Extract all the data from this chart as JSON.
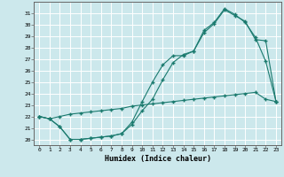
{
  "xlabel": "Humidex (Indice chaleur)",
  "bg_color": "#cce8ec",
  "grid_color": "#ffffff",
  "line_color": "#1a7a6e",
  "xlim": [
    -0.5,
    23.5
  ],
  "ylim": [
    19.5,
    32.0
  ],
  "yticks": [
    20,
    21,
    22,
    23,
    24,
    25,
    26,
    27,
    28,
    29,
    30,
    31
  ],
  "xticks": [
    0,
    1,
    2,
    3,
    4,
    5,
    6,
    7,
    8,
    9,
    10,
    11,
    12,
    13,
    14,
    15,
    16,
    17,
    18,
    19,
    20,
    21,
    22,
    23
  ],
  "line1_x": [
    0,
    1,
    2,
    3,
    4,
    5,
    6,
    7,
    8,
    9,
    10,
    11,
    12,
    13,
    14,
    15,
    16,
    17,
    18,
    19,
    20,
    21,
    22,
    23
  ],
  "line1_y": [
    22.0,
    21.8,
    22.0,
    22.2,
    22.3,
    22.4,
    22.5,
    22.6,
    22.7,
    22.9,
    23.0,
    23.1,
    23.2,
    23.3,
    23.4,
    23.5,
    23.6,
    23.7,
    23.8,
    23.9,
    24.0,
    24.1,
    23.5,
    23.3
  ],
  "line2_x": [
    0,
    1,
    2,
    3,
    4,
    5,
    6,
    7,
    8,
    9,
    10,
    11,
    12,
    13,
    14,
    15,
    16,
    17,
    18,
    19,
    20,
    21,
    22,
    23
  ],
  "line2_y": [
    22.0,
    21.8,
    21.1,
    20.0,
    20.0,
    20.1,
    20.2,
    20.3,
    20.5,
    21.5,
    23.3,
    25.0,
    26.5,
    27.3,
    27.3,
    27.7,
    29.3,
    30.1,
    31.3,
    30.8,
    30.3,
    28.7,
    28.6,
    23.3
  ],
  "line3_x": [
    0,
    1,
    2,
    3,
    4,
    5,
    6,
    7,
    8,
    9,
    10,
    11,
    12,
    13,
    14,
    15,
    16,
    17,
    18,
    19,
    20,
    21,
    22,
    23
  ],
  "line3_y": [
    22.0,
    21.8,
    21.1,
    20.0,
    20.0,
    20.1,
    20.2,
    20.3,
    20.5,
    21.3,
    22.5,
    23.5,
    25.2,
    26.7,
    27.4,
    27.7,
    29.5,
    30.2,
    31.4,
    30.9,
    30.2,
    28.9,
    26.8,
    23.3
  ]
}
